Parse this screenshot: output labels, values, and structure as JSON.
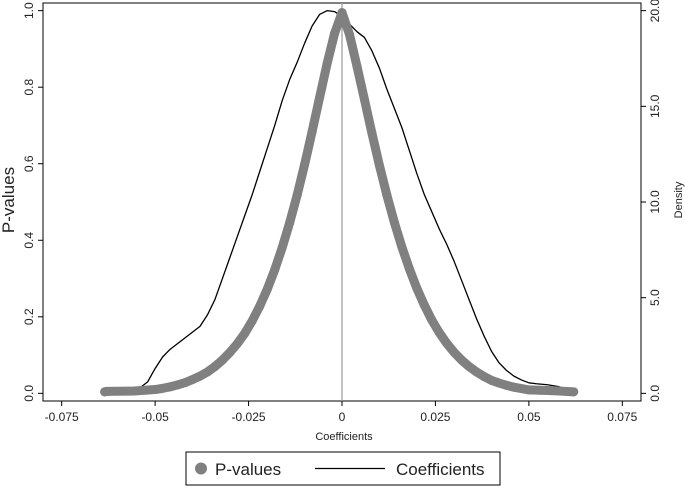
{
  "chart_data": {
    "type": "scatter",
    "title": "",
    "xlabel": "Coefficients",
    "ylabel": "P-values",
    "y2label": "Density",
    "xlim": [
      -0.08,
      0.08
    ],
    "ylim": [
      -0.02,
      1.02
    ],
    "y2lim": [
      -0.4,
      20.4
    ],
    "xticks": [
      -0.075,
      -0.05,
      -0.025,
      0,
      0.025,
      0.05,
      0.075
    ],
    "xtick_labels": [
      "-0.075",
      "-0.05",
      "-0.025",
      "0",
      "0.025",
      "0.05",
      "0.075"
    ],
    "yticks": [
      0,
      0.2,
      0.4,
      0.6,
      0.8,
      1.0
    ],
    "ytick_labels": [
      "0.0",
      "0.2",
      "0.4",
      "0.6",
      "0.8",
      "1.0"
    ],
    "y2ticks": [
      0,
      5,
      10,
      15,
      20
    ],
    "y2tick_labels": [
      "0.0",
      "5.0",
      "10.0",
      "15.0",
      "20.0"
    ],
    "grid": false,
    "legend_position": "bottom",
    "reference_line_x": 0,
    "series": [
      {
        "name": "P-values",
        "kind": "scatter",
        "axis": "left",
        "color": "#808080",
        "points": [
          [
            -0.0635,
            0.004
          ],
          [
            -0.063,
            0.005
          ],
          [
            -0.0555,
            0.006
          ],
          [
            -0.05,
            0.01
          ],
          [
            -0.048,
            0.013
          ],
          [
            -0.046,
            0.017
          ],
          [
            -0.044,
            0.022
          ],
          [
            -0.042,
            0.028
          ],
          [
            -0.04,
            0.036
          ],
          [
            -0.038,
            0.045
          ],
          [
            -0.036,
            0.056
          ],
          [
            -0.034,
            0.07
          ],
          [
            -0.032,
            0.087
          ],
          [
            -0.03,
            0.107
          ],
          [
            -0.028,
            0.13
          ],
          [
            -0.026,
            0.157
          ],
          [
            -0.024,
            0.19
          ],
          [
            -0.022,
            0.228
          ],
          [
            -0.02,
            0.272
          ],
          [
            -0.018,
            0.323
          ],
          [
            -0.016,
            0.381
          ],
          [
            -0.014,
            0.446
          ],
          [
            -0.012,
            0.518
          ],
          [
            -0.01,
            0.598
          ],
          [
            -0.008,
            0.684
          ],
          [
            -0.006,
            0.773
          ],
          [
            -0.004,
            0.861
          ],
          [
            -0.002,
            0.94
          ],
          [
            0.0,
            0.995
          ],
          [
            0.002,
            0.938
          ],
          [
            0.004,
            0.855
          ],
          [
            0.006,
            0.768
          ],
          [
            0.008,
            0.68
          ],
          [
            0.01,
            0.596
          ],
          [
            0.012,
            0.518
          ],
          [
            0.014,
            0.447
          ],
          [
            0.016,
            0.383
          ],
          [
            0.018,
            0.326
          ],
          [
            0.02,
            0.275
          ],
          [
            0.022,
            0.231
          ],
          [
            0.024,
            0.192
          ],
          [
            0.026,
            0.159
          ],
          [
            0.028,
            0.131
          ],
          [
            0.03,
            0.107
          ],
          [
            0.032,
            0.087
          ],
          [
            0.034,
            0.07
          ],
          [
            0.036,
            0.056
          ],
          [
            0.038,
            0.044
          ],
          [
            0.04,
            0.034
          ],
          [
            0.042,
            0.027
          ],
          [
            0.044,
            0.021
          ],
          [
            0.046,
            0.016
          ],
          [
            0.05,
            0.009
          ],
          [
            0.053,
            0.008
          ],
          [
            0.056,
            0.007
          ],
          [
            0.058,
            0.006
          ],
          [
            0.062,
            0.004
          ]
        ]
      },
      {
        "name": "Coefficients",
        "kind": "line",
        "axis": "right",
        "color": "#000000",
        "points": [
          [
            -0.064,
            0.2
          ],
          [
            -0.058,
            0.25
          ],
          [
            -0.054,
            0.3
          ],
          [
            -0.052,
            0.6
          ],
          [
            -0.05,
            1.3
          ],
          [
            -0.048,
            1.9
          ],
          [
            -0.046,
            2.3
          ],
          [
            -0.044,
            2.6
          ],
          [
            -0.042,
            2.9
          ],
          [
            -0.04,
            3.2
          ],
          [
            -0.038,
            3.5
          ],
          [
            -0.036,
            4.1
          ],
          [
            -0.034,
            4.9
          ],
          [
            -0.032,
            6.0
          ],
          [
            -0.03,
            7.1
          ],
          [
            -0.028,
            8.2
          ],
          [
            -0.026,
            9.3
          ],
          [
            -0.024,
            10.4
          ],
          [
            -0.022,
            11.6
          ],
          [
            -0.02,
            12.8
          ],
          [
            -0.018,
            14.0
          ],
          [
            -0.016,
            15.3
          ],
          [
            -0.014,
            16.4
          ],
          [
            -0.012,
            17.3
          ],
          [
            -0.01,
            18.3
          ],
          [
            -0.008,
            19.2
          ],
          [
            -0.006,
            19.8
          ],
          [
            -0.004,
            20.0
          ],
          [
            -0.002,
            19.95
          ],
          [
            0.0,
            19.7
          ],
          [
            0.002,
            19.3
          ],
          [
            0.004,
            18.9
          ],
          [
            0.006,
            18.6
          ],
          [
            0.008,
            17.9
          ],
          [
            0.01,
            17.0
          ],
          [
            0.012,
            15.9
          ],
          [
            0.014,
            14.9
          ],
          [
            0.016,
            13.9
          ],
          [
            0.018,
            12.7
          ],
          [
            0.02,
            11.5
          ],
          [
            0.022,
            10.4
          ],
          [
            0.024,
            9.5
          ],
          [
            0.026,
            8.6
          ],
          [
            0.028,
            7.8
          ],
          [
            0.03,
            6.9
          ],
          [
            0.032,
            5.9
          ],
          [
            0.034,
            4.9
          ],
          [
            0.036,
            3.9
          ],
          [
            0.038,
            3.0
          ],
          [
            0.04,
            2.2
          ],
          [
            0.042,
            1.6
          ],
          [
            0.044,
            1.2
          ],
          [
            0.046,
            0.9
          ],
          [
            0.048,
            0.7
          ],
          [
            0.05,
            0.55
          ],
          [
            0.052,
            0.5
          ],
          [
            0.055,
            0.45
          ],
          [
            0.058,
            0.35
          ],
          [
            0.06,
            0.2
          ],
          [
            0.062,
            0.05
          ]
        ]
      }
    ]
  },
  "legend": {
    "items": [
      {
        "label": "P-values",
        "color": "#808080",
        "kind": "marker"
      },
      {
        "label": "Coefficients",
        "color": "#000000",
        "kind": "line"
      }
    ]
  }
}
